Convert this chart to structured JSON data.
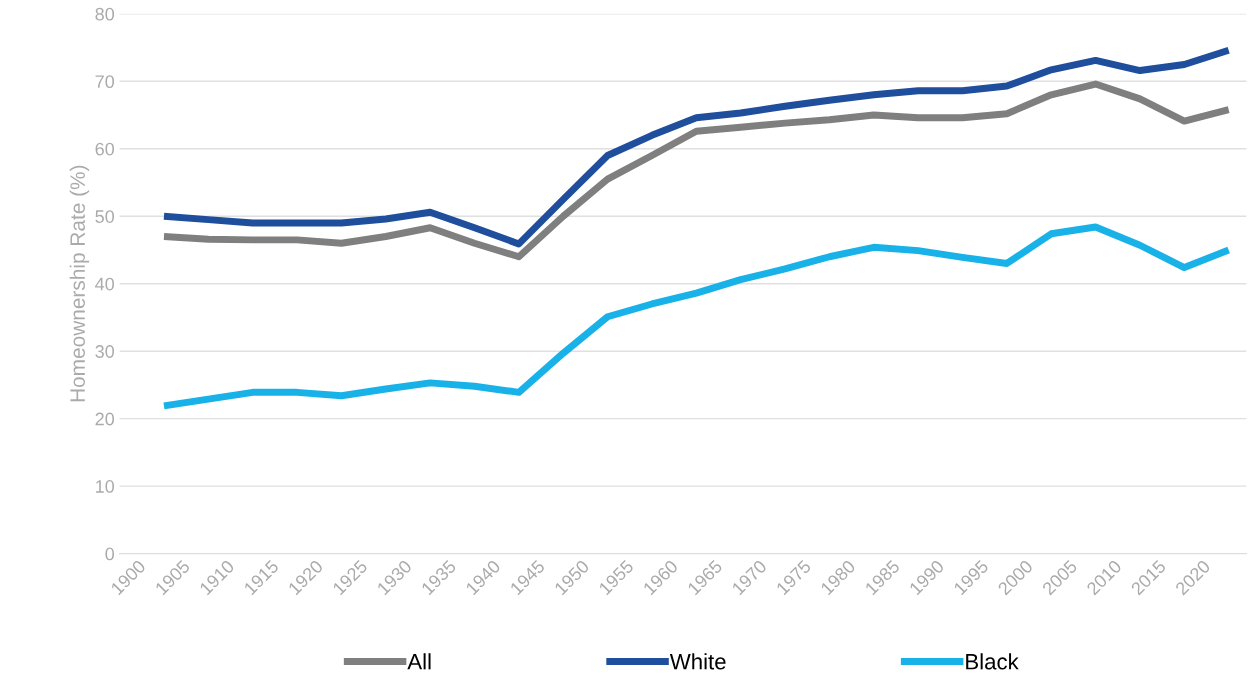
{
  "chart_data": {
    "type": "line",
    "ylabel": "Homeownership Rate (%)",
    "x": [
      1903,
      1908,
      1913,
      1918,
      1923,
      1928,
      1933,
      1938,
      1943,
      1948,
      1953,
      1958,
      1963,
      1968,
      1973,
      1978,
      1983,
      1988,
      1993,
      1998,
      2003,
      2008,
      2013,
      2018,
      2023
    ],
    "series": [
      {
        "name": "All",
        "color": "#7f7f7f",
        "values": [
          47,
          46.6,
          46.5,
          46.5,
          46,
          47,
          48.3,
          46,
          44,
          50,
          55.5,
          59,
          62.6,
          63.2,
          63.8,
          64.3,
          65,
          64.6,
          64.6,
          65.2,
          68,
          69.6,
          67.4,
          64.1,
          65.8
        ]
      },
      {
        "name": "White",
        "color": "#1f4e9c",
        "values": [
          50,
          49.5,
          49,
          49,
          49,
          49.6,
          50.6,
          48.3,
          45.9,
          52.5,
          59,
          62,
          64.6,
          65.3,
          66.3,
          67.2,
          68,
          68.6,
          68.6,
          69.3,
          71.7,
          73.1,
          71.6,
          72.5,
          74.6
        ]
      },
      {
        "name": "Black",
        "color": "#19b2e8",
        "values": [
          21.9,
          22.9,
          23.9,
          23.9,
          23.4,
          24.4,
          25.3,
          24.8,
          23.9,
          29.7,
          35.1,
          37,
          38.6,
          40.6,
          42.2,
          44,
          45.4,
          44.9,
          43.9,
          43,
          47.4,
          48.4,
          45.7,
          42.4,
          45
        ]
      }
    ],
    "xlim": [
      1898,
      2025
    ],
    "xticks": [
      1900,
      1905,
      1910,
      1915,
      1920,
      1925,
      1930,
      1935,
      1940,
      1945,
      1950,
      1955,
      1960,
      1965,
      1970,
      1975,
      1980,
      1985,
      1990,
      1995,
      2000,
      2005,
      2010,
      2015,
      2020
    ],
    "ylim": [
      0,
      80
    ],
    "yticks": [
      0,
      10,
      20,
      30,
      40,
      50,
      60,
      70,
      80
    ],
    "grid": "y",
    "legend": "bottom",
    "marker": "none",
    "line_style": "solid"
  }
}
